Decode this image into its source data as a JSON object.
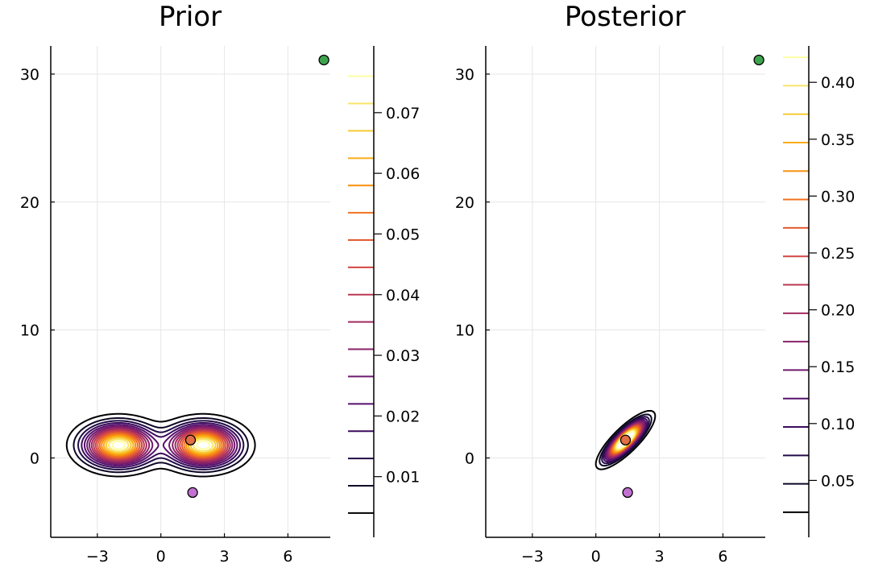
{
  "chart_data": [
    {
      "type": "contour",
      "title": "Prior",
      "xlabel": "",
      "ylabel": "",
      "xlim": [
        -5.2,
        8.0
      ],
      "ylim": [
        -6.2,
        32.2
      ],
      "xticks": [
        -3,
        0,
        3,
        6
      ],
      "yticks": [
        0,
        10,
        20,
        30
      ],
      "xtick_labels": [
        "−3",
        "0",
        "3",
        "6"
      ],
      "ytick_labels": [
        "0",
        "10",
        "20",
        "30"
      ],
      "grid": true,
      "density": {
        "kind": "mixture",
        "components": [
          {
            "weight": 0.5,
            "mean": [
              -2.0,
              1.0
            ],
            "sd": [
              1.0,
              1.0
            ],
            "rho": 0.0
          },
          {
            "weight": 0.5,
            "mean": [
              2.0,
              1.0
            ],
            "sd": [
              1.0,
              1.0
            ],
            "rho": 0.0
          }
        ]
      },
      "contour_levels": [
        0.004,
        0.0085,
        0.013,
        0.0175,
        0.022,
        0.0265,
        0.031,
        0.0355,
        0.04,
        0.0445,
        0.049,
        0.0535,
        0.058,
        0.0625,
        0.067,
        0.0715,
        0.076
      ],
      "points": [
        {
          "x": 7.7,
          "y": 31.1,
          "color": "#3da44d"
        },
        {
          "x": 1.4,
          "y": 1.4,
          "color": "#e26f46"
        },
        {
          "x": 1.5,
          "y": -2.7,
          "color": "#c271d2"
        }
      ],
      "colorbar": {
        "ticks": [
          0.01,
          0.02,
          0.03,
          0.04,
          0.05,
          0.06,
          0.07
        ],
        "tick_labels": [
          "0.01",
          "0.02",
          "0.03",
          "0.04",
          "0.05",
          "0.06",
          "0.07"
        ],
        "range": [
          0.0,
          0.081
        ]
      }
    },
    {
      "type": "contour",
      "title": "Posterior",
      "xlabel": "",
      "ylabel": "",
      "xlim": [
        -5.2,
        8.0
      ],
      "ylim": [
        -6.2,
        32.2
      ],
      "xticks": [
        -3,
        0,
        3,
        6
      ],
      "yticks": [
        0,
        10,
        20,
        30
      ],
      "xtick_labels": [
        "−3",
        "0",
        "3",
        "6"
      ],
      "ytick_labels": [
        "0",
        "10",
        "20",
        "30"
      ],
      "grid": true,
      "density": {
        "kind": "mixture",
        "components": [
          {
            "weight": 1.0,
            "mean": [
              1.4,
              1.4
            ],
            "sd": [
              0.55,
              0.9
            ],
            "rho": 0.82
          }
        ]
      },
      "contour_levels": [
        0.022,
        0.047,
        0.072,
        0.097,
        0.122,
        0.147,
        0.172,
        0.197,
        0.222,
        0.247,
        0.272,
        0.297,
        0.322,
        0.347,
        0.372,
        0.397,
        0.422
      ],
      "points": [
        {
          "x": 7.7,
          "y": 31.1,
          "color": "#3da44d"
        },
        {
          "x": 1.4,
          "y": 1.4,
          "color": "#e26f46"
        },
        {
          "x": 1.5,
          "y": -2.7,
          "color": "#c271d2"
        }
      ],
      "colorbar": {
        "ticks": [
          0.05,
          0.1,
          0.15,
          0.2,
          0.25,
          0.3,
          0.35,
          0.4
        ],
        "tick_labels": [
          "0.05",
          "0.10",
          "0.15",
          "0.20",
          "0.25",
          "0.30",
          "0.35",
          "0.40"
        ],
        "range": [
          0.0,
          0.432
        ]
      }
    }
  ],
  "colors": {
    "inferno": [
      "#000004",
      "#1b0c41",
      "#4a0c6b",
      "#781c6d",
      "#a52c60",
      "#cf4446",
      "#ed6925",
      "#fb9b06",
      "#f7d13d",
      "#fcffa4"
    ],
    "grid": "#e6e6e6",
    "axis": "#000000",
    "marker_stroke": "#000000"
  }
}
